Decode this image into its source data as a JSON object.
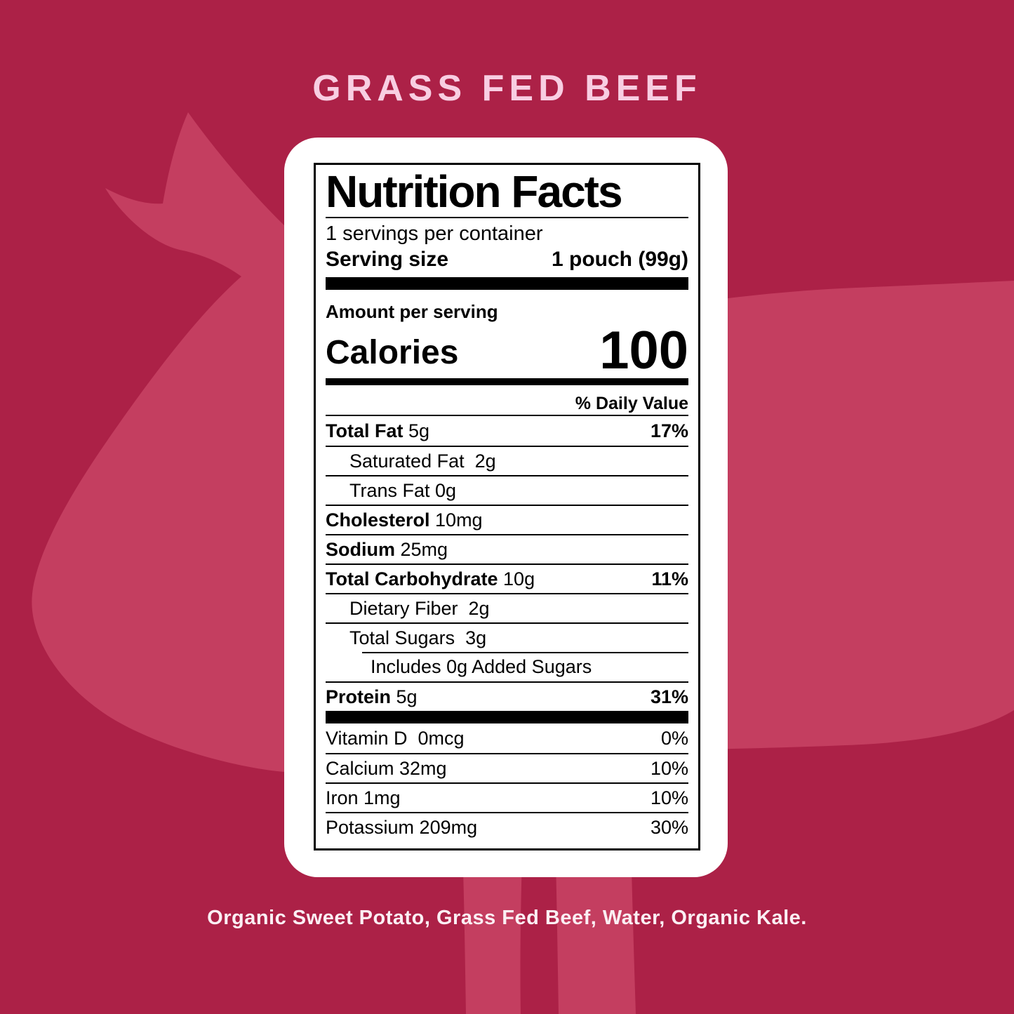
{
  "page": {
    "background_color": "#AC2147",
    "silhouette_color": "#C43E60",
    "card_color": "#FFFFFF",
    "cow_icon": "cow-silhouette"
  },
  "title": {
    "text": "GRASS FED BEEF",
    "color": "#F8CEE2"
  },
  "label": {
    "heading": "Nutrition Facts",
    "servings_per_container": "1 servings per container",
    "serving_size_label": "Serving size",
    "serving_size_value": "1 pouch (99g)",
    "amount_per_serving": "Amount per serving",
    "calories_label": "Calories",
    "calories_value": "100",
    "daily_value_header": "% Daily Value",
    "nutrients": [
      {
        "name": "Total Fat",
        "amount": "5g",
        "dv": "17%",
        "bold": true,
        "indent": 0
      },
      {
        "name": "Saturated Fat",
        "amount": "2g",
        "dv": "",
        "bold": false,
        "indent": 1,
        "spaces": 2
      },
      {
        "name": "Trans Fat",
        "amount": "0g",
        "dv": "",
        "bold": false,
        "indent": 1
      },
      {
        "name": "Cholesterol",
        "amount": "10mg",
        "dv": "",
        "bold": true,
        "indent": 0
      },
      {
        "name": "Sodium",
        "amount": "25mg",
        "dv": "",
        "bold": true,
        "indent": 0
      },
      {
        "name": "Total Carbohydrate",
        "amount": "10g",
        "dv": "11%",
        "bold": true,
        "indent": 0
      },
      {
        "name": "Dietary Fiber",
        "amount": "2g",
        "dv": "",
        "bold": false,
        "indent": 1,
        "spaces": 2
      },
      {
        "name": "Total Sugars",
        "amount": "3g",
        "dv": "",
        "bold": false,
        "indent": 1,
        "spaces": 2
      },
      {
        "name": "Includes 0g Added Sugars",
        "amount": "",
        "dv": "",
        "bold": false,
        "indent": 2,
        "rule": "indent"
      },
      {
        "name": "Protein",
        "amount": "5g",
        "dv": "31%",
        "bold": true,
        "indent": 0
      }
    ],
    "vitamins": [
      {
        "name": "Vitamin D",
        "amount": "0mcg",
        "dv": "0%",
        "spaces": 2
      },
      {
        "name": "Calcium",
        "amount": "32mg",
        "dv": "10%"
      },
      {
        "name": "Iron",
        "amount": "1mg",
        "dv": "10%"
      },
      {
        "name": "Potassium",
        "amount": "209mg",
        "dv": "30%"
      }
    ]
  },
  "ingredients": {
    "text": "Organic Sweet Potato, Grass Fed Beef, Water, Organic Kale.",
    "color": "#FBEFF4"
  }
}
